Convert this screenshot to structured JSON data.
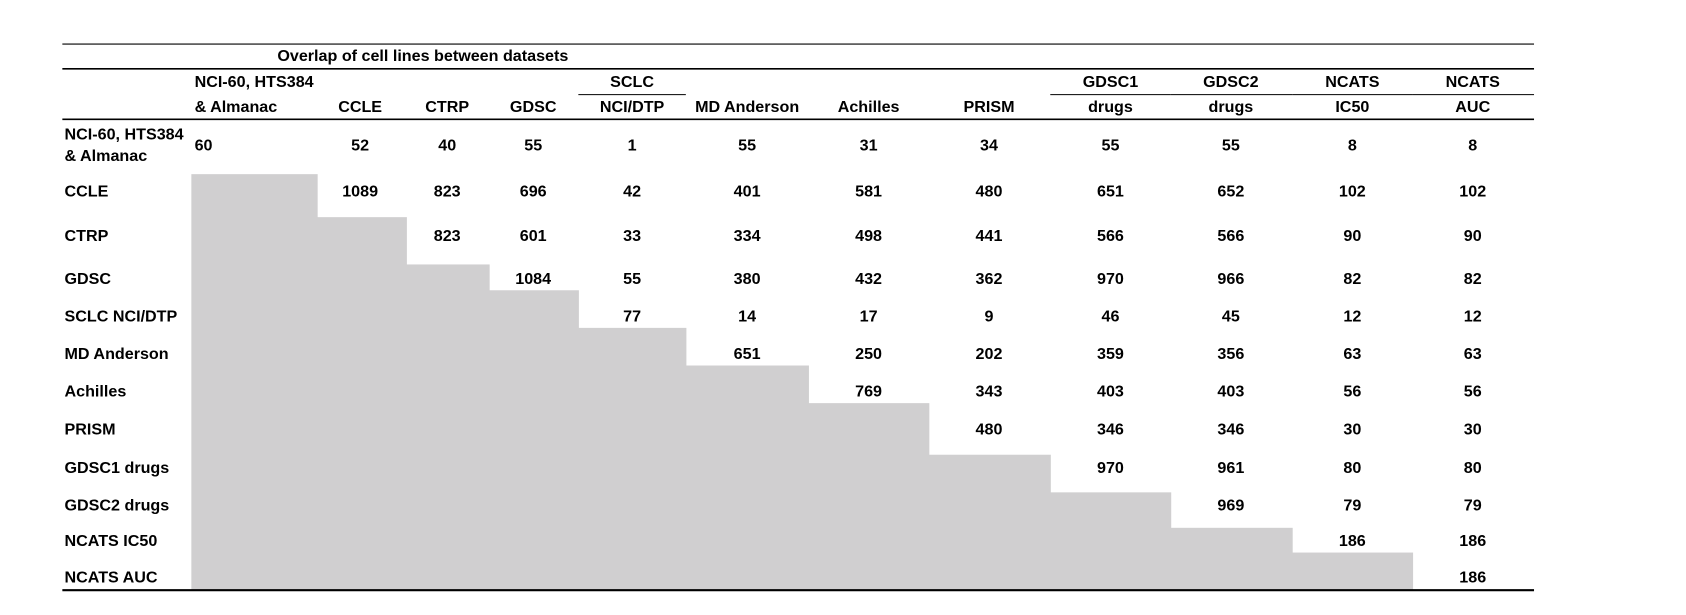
{
  "table": {
    "title": "Overlap of cell lines between datasets",
    "columns": [
      [
        "NCI-60, HTS384",
        "& Almanac"
      ],
      [
        "CCLE"
      ],
      [
        "CTRP"
      ],
      [
        "GDSC"
      ],
      [
        "SCLC",
        "NCI/DTP"
      ],
      [
        "MD Anderson"
      ],
      [
        "Achilles"
      ],
      [
        "PRISM"
      ],
      [
        "GDSC1",
        "drugs"
      ],
      [
        "GDSC2",
        "drugs"
      ],
      [
        "NCATS",
        "IC50"
      ],
      [
        "NCATS",
        "AUC"
      ]
    ],
    "rows": [
      {
        "label": [
          "NCI-60, HTS384",
          "& Almanac"
        ],
        "cells": [
          60,
          52,
          40,
          55,
          1,
          55,
          31,
          34,
          55,
          55,
          8,
          8
        ]
      },
      {
        "label": [
          "CCLE"
        ],
        "cells": [
          1089,
          823,
          696,
          42,
          401,
          581,
          480,
          651,
          652,
          102,
          102
        ]
      },
      {
        "label": [
          "CTRP"
        ],
        "cells": [
          823,
          601,
          33,
          334,
          498,
          441,
          566,
          566,
          90,
          90
        ]
      },
      {
        "label": [
          "GDSC"
        ],
        "cells": [
          1084,
          55,
          380,
          432,
          362,
          970,
          966,
          82,
          82
        ]
      },
      {
        "label": [
          "SCLC NCI/DTP"
        ],
        "cells": [
          77,
          14,
          17,
          9,
          46,
          45,
          12,
          12
        ]
      },
      {
        "label": [
          "MD Anderson"
        ],
        "cells": [
          651,
          250,
          202,
          359,
          356,
          63,
          63
        ]
      },
      {
        "label": [
          "Achilles"
        ],
        "cells": [
          769,
          343,
          403,
          403,
          56,
          56
        ]
      },
      {
        "label": [
          "PRISM"
        ],
        "cells": [
          480,
          346,
          346,
          30,
          30
        ]
      },
      {
        "label": [
          "GDSC1 drugs"
        ],
        "cells": [
          970,
          961,
          80,
          80
        ]
      },
      {
        "label": [
          "GDSC2 drugs"
        ],
        "cells": [
          969,
          79,
          79
        ]
      },
      {
        "label": [
          "NCATS IC50"
        ],
        "cells": [
          186,
          186
        ]
      },
      {
        "label": [
          "NCATS AUC"
        ],
        "cells": [
          186
        ]
      }
    ]
  }
}
